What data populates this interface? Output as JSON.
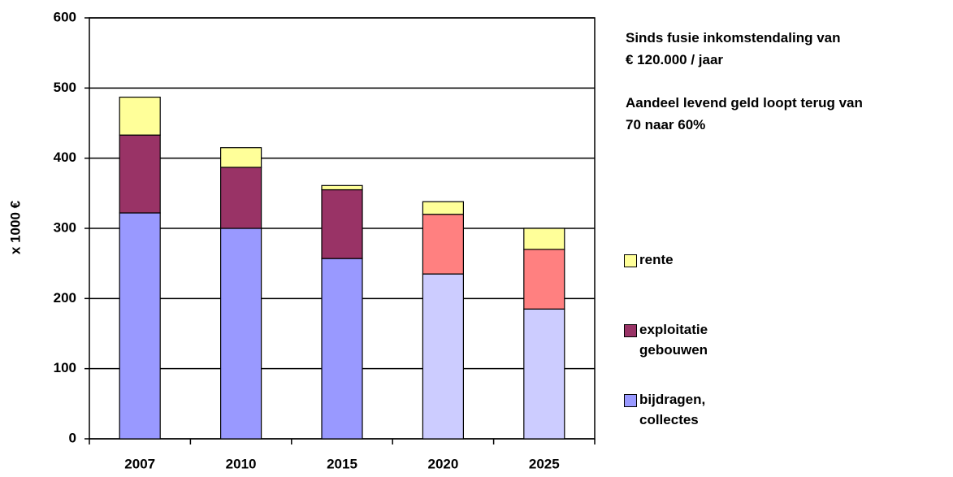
{
  "chart_data": {
    "type": "stacked_bar",
    "y_label": "x 1000 €",
    "categories": [
      "2007",
      "2010",
      "2015",
      "2020",
      "2025"
    ],
    "series": [
      {
        "name": "bijdragen, collectes",
        "color": "#9999ff",
        "colors": [
          "#9999ff",
          "#9999ff",
          "#9999ff",
          "#ccccff",
          "#ccccff"
        ],
        "values": [
          322,
          300,
          257,
          235,
          185
        ]
      },
      {
        "name": "exploitatie gebouwen",
        "color": "#993366",
        "colors": [
          "#993366",
          "#993366",
          "#993366",
          "#ff8080",
          "#ff8080"
        ],
        "values": [
          111,
          87,
          98,
          85,
          85
        ]
      },
      {
        "name": "rente",
        "color": "#ffff99",
        "colors": [
          "#ffff99",
          "#ffff99",
          "#ffff99",
          "#ffff99",
          "#ffff99"
        ],
        "values": [
          54,
          28,
          6,
          18,
          30
        ]
      }
    ],
    "ylim": [
      0,
      600
    ],
    "yticks": [
      0,
      100,
      200,
      300,
      400,
      500,
      600
    ],
    "grid": true,
    "annotations": [
      [
        "Sinds fusie inkomstendaling van",
        "€ 120.000 / jaar"
      ],
      [
        "Aandeel levend geld loopt terug van",
        "70 naar 60%"
      ]
    ]
  }
}
